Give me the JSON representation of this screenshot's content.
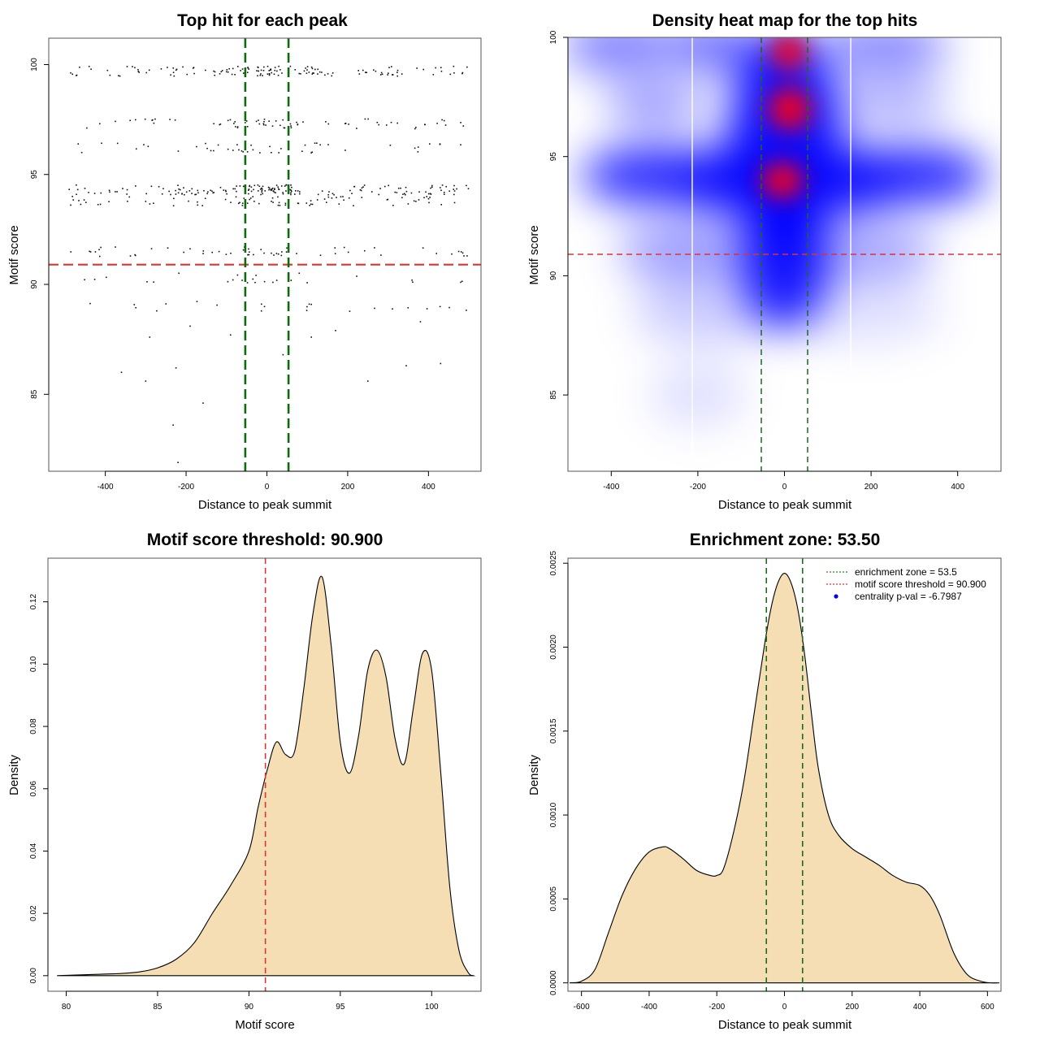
{
  "colors": {
    "frame": "#555555",
    "threshold_line": "#dd3333",
    "zone_line": "#1a6b1a",
    "zone_line_bold": "#0b6e0b",
    "fill": "#f5deb3",
    "heat_blue": "#0000ff",
    "heat_red": "#ee0022",
    "points": "#111111",
    "legend_point": "#0000ff"
  },
  "chart_data": [
    {
      "id": "scatter",
      "type": "scatter",
      "title": "Top hit for each peak",
      "xlabel": "Distance to peak summit",
      "ylabel": "Motif score",
      "xlim": [
        -540,
        530
      ],
      "ylim": [
        81.5,
        101.2
      ],
      "x_ticks": [
        -400,
        -200,
        0,
        200,
        400
      ],
      "x_tick_labels": [
        "-400",
        "-200",
        "0",
        "200",
        "400"
      ],
      "y_ticks": [
        85,
        90,
        95,
        100
      ],
      "y_tick_labels": [
        "85",
        "90",
        "95",
        "100"
      ],
      "hline": 90.9,
      "vlines": [
        -53.5,
        53.5
      ],
      "score_bands": [
        99.7,
        97.3,
        96.2,
        94.3,
        93.8,
        91.5,
        90.3,
        89.0
      ],
      "band_sizes": [
        140,
        70,
        45,
        170,
        80,
        55,
        25,
        22
      ],
      "sparse_points": [
        [
          -220,
          81.9
        ],
        [
          -232,
          83.6
        ],
        [
          -158,
          84.6
        ],
        [
          -300,
          85.6
        ],
        [
          -360,
          86.0
        ],
        [
          -225,
          86.2
        ],
        [
          250,
          85.6
        ],
        [
          345,
          86.3
        ],
        [
          430,
          86.4
        ],
        [
          -90,
          87.7
        ],
        [
          40,
          86.8
        ],
        [
          -290,
          87.6
        ],
        [
          -190,
          88.1
        ],
        [
          170,
          87.9
        ],
        [
          110,
          87.6
        ],
        [
          380,
          88.3
        ]
      ]
    },
    {
      "id": "heatmap",
      "type": "heatmap",
      "title": "Density heat map for the top hits",
      "xlabel": "Distance to peak summit",
      "ylabel": "Motif score",
      "xlim": [
        -500,
        500
      ],
      "ylim": [
        81.8,
        100
      ],
      "x_ticks": [
        -400,
        -200,
        0,
        200,
        400
      ],
      "x_tick_labels": [
        "-400",
        "-200",
        "0",
        "200",
        "400"
      ],
      "y_ticks": [
        85,
        90,
        95,
        100
      ],
      "y_tick_labels": [
        "85",
        "90",
        "95",
        "100"
      ],
      "hline": 90.9,
      "vlines": [
        -53.5,
        53.5
      ],
      "white_vlines": [
        -213,
        153
      ]
    },
    {
      "id": "score_density",
      "type": "area",
      "title": "Motif score threshold: 90.900",
      "xlabel": "Motif score",
      "ylabel": "Density",
      "xlim": [
        79,
        102.7
      ],
      "ylim": [
        -0.005,
        0.134
      ],
      "x_ticks": [
        80,
        85,
        90,
        95,
        100
      ],
      "x_tick_labels": [
        "80",
        "85",
        "90",
        "95",
        "100"
      ],
      "y_ticks": [
        0,
        0.02,
        0.04,
        0.06,
        0.08,
        0.1,
        0.12
      ],
      "y_tick_labels": [
        "0.00",
        "0.02",
        "0.04",
        "0.06",
        "0.08",
        "0.10",
        "0.12"
      ],
      "vline": 90.9,
      "x": [
        79.5,
        81,
        82,
        83,
        84,
        85,
        86,
        87,
        88,
        89,
        90,
        90.5,
        91,
        91.5,
        92,
        92.5,
        93,
        93.5,
        94,
        94.5,
        95,
        95.5,
        96,
        96.5,
        97,
        97.5,
        98,
        98.5,
        99,
        99.5,
        100,
        100.5,
        101,
        101.5,
        102,
        102.3
      ],
      "y": [
        0,
        0.0003,
        0.0005,
        0.0007,
        0.0012,
        0.0025,
        0.0052,
        0.0105,
        0.02,
        0.029,
        0.04,
        0.054,
        0.066,
        0.075,
        0.071,
        0.072,
        0.092,
        0.116,
        0.128,
        0.106,
        0.075,
        0.065,
        0.077,
        0.098,
        0.1045,
        0.096,
        0.076,
        0.068,
        0.086,
        0.1035,
        0.098,
        0.065,
        0.028,
        0.008,
        0.001,
        0
      ]
    },
    {
      "id": "distance_density",
      "type": "area",
      "title": "Enrichment zone: 53.50",
      "xlabel": "Distance to peak summit",
      "ylabel": "Density",
      "xlim": [
        -640,
        640
      ],
      "ylim": [
        -5e-05,
        0.00253
      ],
      "x_ticks": [
        -600,
        -400,
        -200,
        0,
        200,
        400,
        600
      ],
      "x_tick_labels": [
        "-600",
        "-400",
        "-200",
        "0",
        "200",
        "400",
        "600"
      ],
      "y_ticks": [
        0,
        0.0005,
        0.001,
        0.0015,
        0.002,
        0.0025
      ],
      "y_tick_labels": [
        "0.0000",
        "0.0005",
        "0.0010",
        "0.0015",
        "0.0020",
        "0.0025"
      ],
      "vlines": [
        -53.5,
        53.5
      ],
      "x": [
        -635,
        -600,
        -560,
        -520,
        -480,
        -440,
        -400,
        -360,
        -340,
        -300,
        -260,
        -220,
        -200,
        -180,
        -150,
        -120,
        -90,
        -60,
        -40,
        -20,
        0,
        20,
        40,
        60,
        80,
        100,
        130,
        160,
        200,
        240,
        280,
        320,
        360,
        400,
        430,
        460,
        500,
        540,
        580,
        610,
        635
      ],
      "y": [
        0,
        1e-05,
        8e-05,
        0.0003,
        0.00052,
        0.00068,
        0.00078,
        0.00081,
        0.0008,
        0.00074,
        0.00067,
        0.00064,
        0.00064,
        0.00068,
        0.0009,
        0.0012,
        0.0016,
        0.002,
        0.00223,
        0.00238,
        0.00244,
        0.00238,
        0.00222,
        0.00195,
        0.0016,
        0.00128,
        0.001,
        0.00088,
        0.0008,
        0.00075,
        0.0007,
        0.00064,
        0.0006,
        0.00058,
        0.00052,
        0.0004,
        0.00018,
        5e-05,
        1e-05,
        0,
        0
      ],
      "legend": [
        {
          "label": "enrichment zone = 53.5",
          "color": "#1a8a1a",
          "kind": "line"
        },
        {
          "label": "motif score threshold = 90.900",
          "color": "#e03030",
          "kind": "line"
        },
        {
          "label": "centrality p-val = -6.7987",
          "color": "#0000ff",
          "kind": "point"
        }
      ]
    }
  ]
}
